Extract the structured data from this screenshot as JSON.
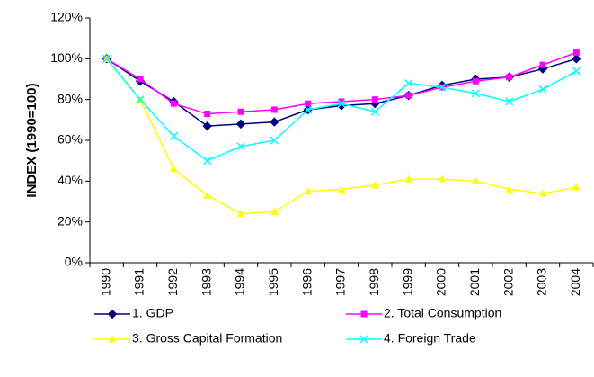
{
  "chart_data": {
    "type": "line",
    "y_label": "INDEX (1990=100)",
    "categories": [
      "1990",
      "1991",
      "1992",
      "1993",
      "1994",
      "1995",
      "1996",
      "1997",
      "1998",
      "1999",
      "2000",
      "2001",
      "2002",
      "2003",
      "2004"
    ],
    "ylim": [
      0,
      120
    ],
    "yticks": [
      {
        "value": 0,
        "label": "0%"
      },
      {
        "value": 20,
        "label": "20%"
      },
      {
        "value": 40,
        "label": "40%"
      },
      {
        "value": 60,
        "label": "60%"
      },
      {
        "value": 80,
        "label": "80%"
      },
      {
        "value": 100,
        "label": "100%"
      },
      {
        "value": 120,
        "label": "120%"
      }
    ],
    "series": [
      {
        "name": "1. GDP",
        "color": "#000080",
        "marker": "diamond",
        "values": [
          100,
          89,
          79,
          67,
          68,
          69,
          75,
          77,
          78,
          82,
          87,
          90,
          91,
          95,
          100
        ]
      },
      {
        "name": "2. Total Consumption",
        "color": "#ff00ff",
        "marker": "square",
        "values": [
          100,
          90,
          78,
          73,
          74,
          75,
          78,
          79,
          80,
          82,
          86,
          89,
          91,
          97,
          103
        ]
      },
      {
        "name": "3. Gross Capital Formation",
        "color": "#ffff00",
        "marker": "triangle",
        "values": [
          100,
          80,
          46,
          33,
          24,
          25,
          35,
          36,
          38,
          41,
          41,
          40,
          36,
          34,
          37
        ]
      },
      {
        "name": "4. Foreign Trade",
        "color": "#00ffff",
        "marker": "x",
        "values": [
          100,
          80,
          62,
          50,
          57,
          60,
          75,
          78,
          74,
          88,
          86,
          83,
          79,
          85,
          94
        ]
      }
    ]
  }
}
